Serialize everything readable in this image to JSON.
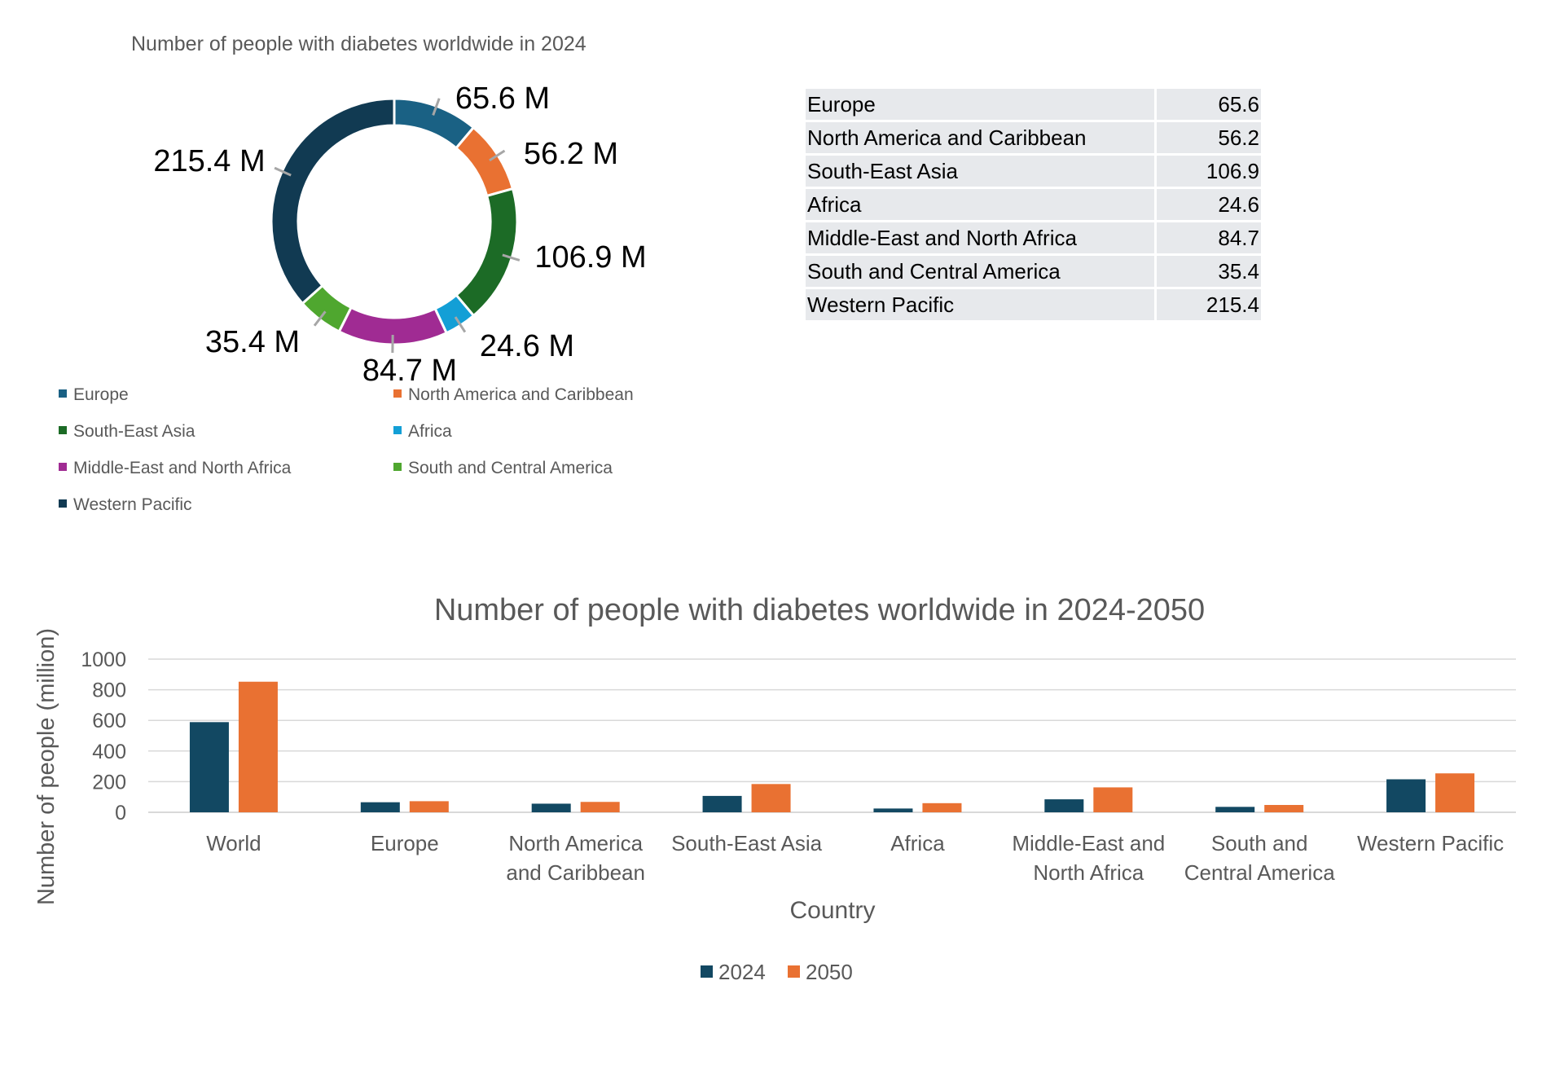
{
  "donut": {
    "title": "Number of people with diabetes worldwide in 2024",
    "unit_suffix": " M"
  },
  "table": {
    "rows": [
      {
        "region": "Europe",
        "value": "65.6"
      },
      {
        "region": "North America and Caribbean",
        "value": "56.2"
      },
      {
        "region": "South-East Asia",
        "value": "106.9"
      },
      {
        "region": "Africa",
        "value": "24.6"
      },
      {
        "region": "Middle-East and North Africa",
        "value": "84.7"
      },
      {
        "region": "South and Central America",
        "value": "35.4"
      },
      {
        "region": "Western Pacific",
        "value": "215.4"
      }
    ]
  },
  "chart_data": [
    {
      "type": "pie",
      "variant": "donut",
      "title": "Number of people with diabetes worldwide in 2024",
      "categories": [
        "Europe",
        "North America and Caribbean",
        "South-East Asia",
        "Africa",
        "Middle-East and North Africa",
        "South and Central America",
        "Western Pacific"
      ],
      "values": [
        65.6,
        56.2,
        106.9,
        24.6,
        84.7,
        35.4,
        215.4
      ],
      "data_labels": [
        "65.6 M",
        "56.2 M",
        "106.9 M",
        "24.6 M",
        "84.7 M",
        "35.4 M",
        "215.4 M"
      ],
      "colors": [
        "#1a6184",
        "#e97132",
        "#1c6b26",
        "#139fd6",
        "#a02b93",
        "#4fa72f",
        "#113a52"
      ],
      "legend_placement": "bottom"
    },
    {
      "type": "bar",
      "title": "Number of people with diabetes worldwide in 2024-2050",
      "xlabel": "Country",
      "ylabel": "Number of people (million)",
      "categories": [
        "World",
        "Europe",
        "North America and Caribbean",
        "South-East Asia",
        "Africa",
        "Middle-East and North Africa",
        "South and Central America",
        "Western Pacific"
      ],
      "category_lines": [
        [
          "World"
        ],
        [
          "Europe"
        ],
        [
          "North America",
          "and Caribbean"
        ],
        [
          "South-East Asia"
        ],
        [
          "Africa"
        ],
        [
          "Middle-East and",
          "North Africa"
        ],
        [
          "South and",
          "Central America"
        ],
        [
          "Western Pacific"
        ]
      ],
      "series": [
        {
          "name": "2024",
          "color": "#124862",
          "values": [
            588.7,
            65.6,
            56.2,
            106.9,
            24.6,
            84.7,
            35.4,
            215.4
          ]
        },
        {
          "name": "2050",
          "color": "#e97132",
          "values": [
            852.5,
            72.4,
            67.8,
            184.5,
            59.5,
            162.6,
            47.8,
            254.1
          ]
        }
      ],
      "ylim": [
        0,
        1000
      ],
      "yticks": [
        0,
        200,
        400,
        600,
        800,
        1000
      ],
      "grid": true,
      "legend_placement": "bottom"
    }
  ]
}
